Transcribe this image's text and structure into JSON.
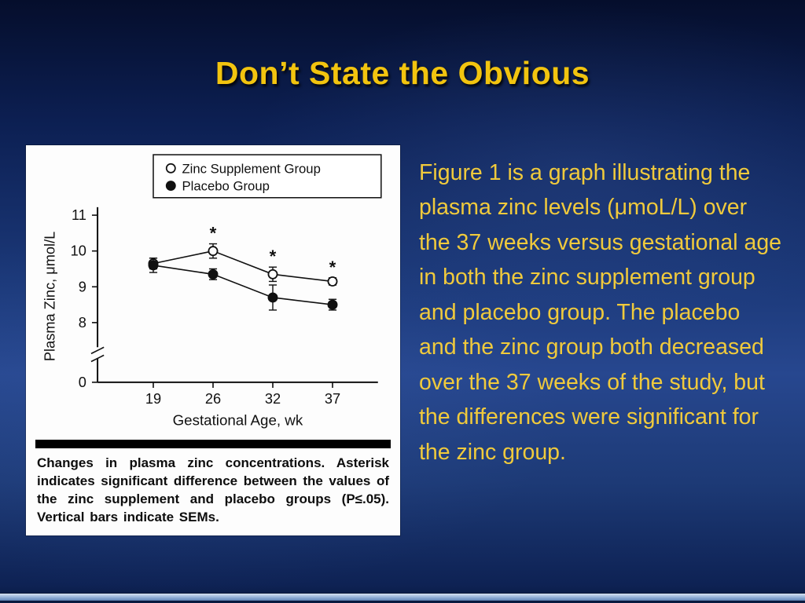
{
  "slide": {
    "title": "Don’t State the Obvious",
    "body_text": "Figure 1 is a graph illustrating the plasma zinc levels (μmoL/L) over the 37 weeks versus gestational age in both the zinc supplement group and placebo group. The placebo and the zinc group both decreased over the 37 weeks of the study, but the differences were significant for the zinc group."
  },
  "figure": {
    "caption": "Changes in plasma zinc concentrations. Asterisk indicates significant difference between the values of the zinc supplement and placebo groups (P≤.05). Vertical bars indicate SEMs."
  },
  "chart_data": {
    "type": "line",
    "x": [
      19,
      26,
      32,
      37
    ],
    "xlabel": "Gestational Age, wk",
    "ylabel": "Plasma Zinc, μmol/L",
    "yticks": [
      11,
      10,
      9,
      8,
      0
    ],
    "axis_break": true,
    "ylim_display": [
      8,
      11
    ],
    "legend_position": "top",
    "grid": false,
    "series": [
      {
        "name": "Zinc Supplement Group",
        "marker": "open-circle",
        "values": [
          9.65,
          10.0,
          9.35,
          9.15
        ],
        "sem": [
          0.15,
          0.2,
          0.2,
          0.1
        ],
        "significant": [
          false,
          true,
          true,
          true
        ]
      },
      {
        "name": "Placebo Group",
        "marker": "filled-circle",
        "values": [
          9.6,
          9.35,
          8.7,
          8.5
        ],
        "sem": [
          0.2,
          0.15,
          0.35,
          0.15
        ],
        "significant": [
          false,
          false,
          false,
          false
        ]
      }
    ]
  },
  "colors": {
    "title_gold": "#f2c40f",
    "body_gold": "#f0ca3c",
    "background_blue": "#27478f",
    "figure_background": "#fdfdfd",
    "chart_ink": "#111111"
  }
}
